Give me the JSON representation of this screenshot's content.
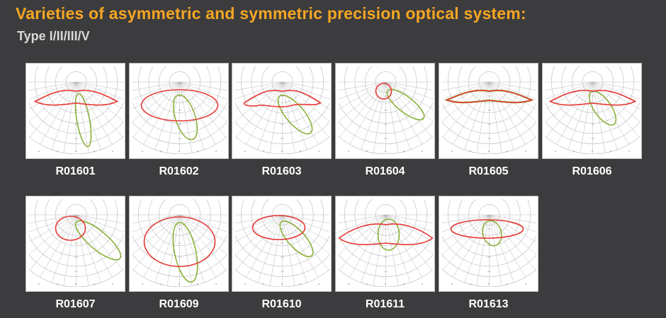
{
  "header": {
    "title": "Varieties of asymmetric and symmetric precision optical system:",
    "subtitle": "Type I/II/III/V"
  },
  "colors": {
    "background": "#3c3c3e",
    "title": "#f5a623",
    "subtitle": "#d9d9d9",
    "curve_primary": "#e53935",
    "curve_secondary": "#8bb13a",
    "grid": "#b9b9b9"
  },
  "diagrams": [
    {
      "code": "R01601"
    },
    {
      "code": "R01602"
    },
    {
      "code": "R01603"
    },
    {
      "code": "R01604"
    },
    {
      "code": "R01605"
    },
    {
      "code": "R01606"
    },
    {
      "code": "R01607"
    },
    {
      "code": "R01609"
    },
    {
      "code": "R01610"
    },
    {
      "code": "R01611"
    },
    {
      "code": "R01613"
    }
  ]
}
